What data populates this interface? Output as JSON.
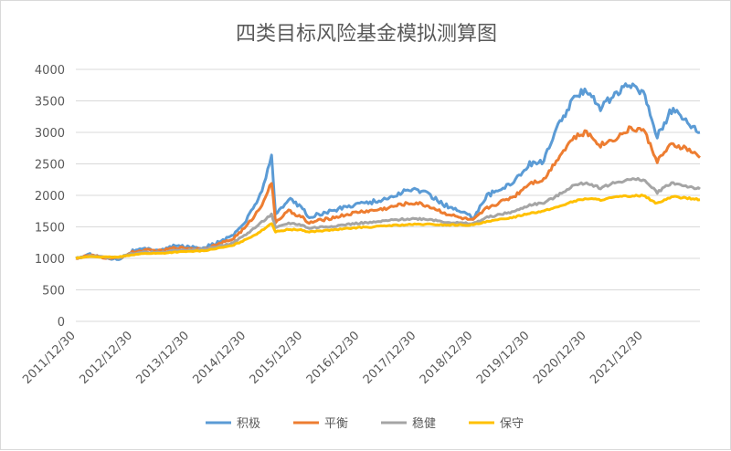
{
  "chart_data": {
    "type": "line",
    "title": "四类目标风险基金模拟测算图",
    "xlabel": "",
    "ylabel": "",
    "ylim": [
      0,
      4000
    ],
    "yticks": [
      0,
      500,
      1000,
      1500,
      2000,
      2500,
      3000,
      3500,
      4000
    ],
    "xticks": [
      "2011/12/30",
      "2012/12/30",
      "2013/12/30",
      "2014/12/30",
      "2015/12/30",
      "2016/12/30",
      "2017/12/30",
      "2018/12/30",
      "2019/12/30",
      "2020/12/30",
      "2021/12/30"
    ],
    "grid": "horizontal",
    "legend_position": "bottom",
    "x": [
      "2011/12/30",
      "2012/03/30",
      "2012/06/30",
      "2012/09/30",
      "2012/12/30",
      "2013/03/30",
      "2013/06/30",
      "2013/09/30",
      "2013/12/30",
      "2014/03/30",
      "2014/06/30",
      "2014/09/30",
      "2014/12/30",
      "2015/03/30",
      "2015/06/12",
      "2015/07/08",
      "2015/09/30",
      "2015/12/30",
      "2016/01/29",
      "2016/06/30",
      "2016/12/30",
      "2017/03/30",
      "2017/06/30",
      "2017/09/30",
      "2017/12/30",
      "2018/03/30",
      "2018/06/30",
      "2018/09/30",
      "2018/12/30",
      "2019/03/30",
      "2019/06/30",
      "2019/09/30",
      "2019/12/30",
      "2020/03/30",
      "2020/06/30",
      "2020/09/30",
      "2020/12/30",
      "2021/03/30",
      "2021/06/30",
      "2021/09/30",
      "2021/12/30",
      "2022/03/30",
      "2022/06/30",
      "2022/09/30",
      "2022/12/30"
    ],
    "series": [
      {
        "name": "积极",
        "color": "#5b9bd5",
        "values": [
          1000,
          1060,
          1010,
          990,
          1120,
          1150,
          1130,
          1200,
          1180,
          1170,
          1250,
          1350,
          1600,
          2000,
          2600,
          1700,
          1950,
          1800,
          1650,
          1750,
          1880,
          1900,
          1950,
          2050,
          2100,
          2000,
          1850,
          1750,
          1650,
          2000,
          2100,
          2250,
          2500,
          2550,
          3100,
          3500,
          3700,
          3400,
          3600,
          3750,
          3650,
          2950,
          3350,
          3200,
          3000
        ]
      },
      {
        "name": "平衡",
        "color": "#ed7d31",
        "values": [
          1000,
          1050,
          1010,
          1000,
          1100,
          1130,
          1120,
          1170,
          1160,
          1150,
          1220,
          1300,
          1500,
          1800,
          2200,
          1580,
          1750,
          1650,
          1560,
          1640,
          1740,
          1760,
          1800,
          1860,
          1880,
          1820,
          1720,
          1650,
          1600,
          1800,
          1900,
          2000,
          2200,
          2250,
          2600,
          2900,
          3000,
          2800,
          2900,
          3050,
          3050,
          2550,
          2800,
          2750,
          2600
        ]
      },
      {
        "name": "稳健",
        "color": "#a5a5a5",
        "values": [
          1000,
          1040,
          1020,
          1010,
          1080,
          1100,
          1090,
          1130,
          1130,
          1140,
          1190,
          1240,
          1380,
          1550,
          1700,
          1480,
          1560,
          1530,
          1480,
          1510,
          1560,
          1570,
          1600,
          1620,
          1630,
          1620,
          1580,
          1560,
          1550,
          1650,
          1700,
          1750,
          1850,
          1880,
          2000,
          2150,
          2200,
          2120,
          2200,
          2250,
          2250,
          2050,
          2200,
          2150,
          2100
        ]
      },
      {
        "name": "保守",
        "color": "#ffc000",
        "values": [
          1000,
          1030,
          1020,
          1020,
          1060,
          1080,
          1080,
          1100,
          1110,
          1120,
          1160,
          1200,
          1300,
          1420,
          1560,
          1420,
          1460,
          1450,
          1420,
          1450,
          1490,
          1500,
          1520,
          1530,
          1540,
          1540,
          1530,
          1530,
          1530,
          1580,
          1620,
          1660,
          1720,
          1750,
          1820,
          1900,
          1950,
          1930,
          1970,
          1990,
          2000,
          1870,
          1980,
          1960,
          1930
        ]
      }
    ]
  }
}
